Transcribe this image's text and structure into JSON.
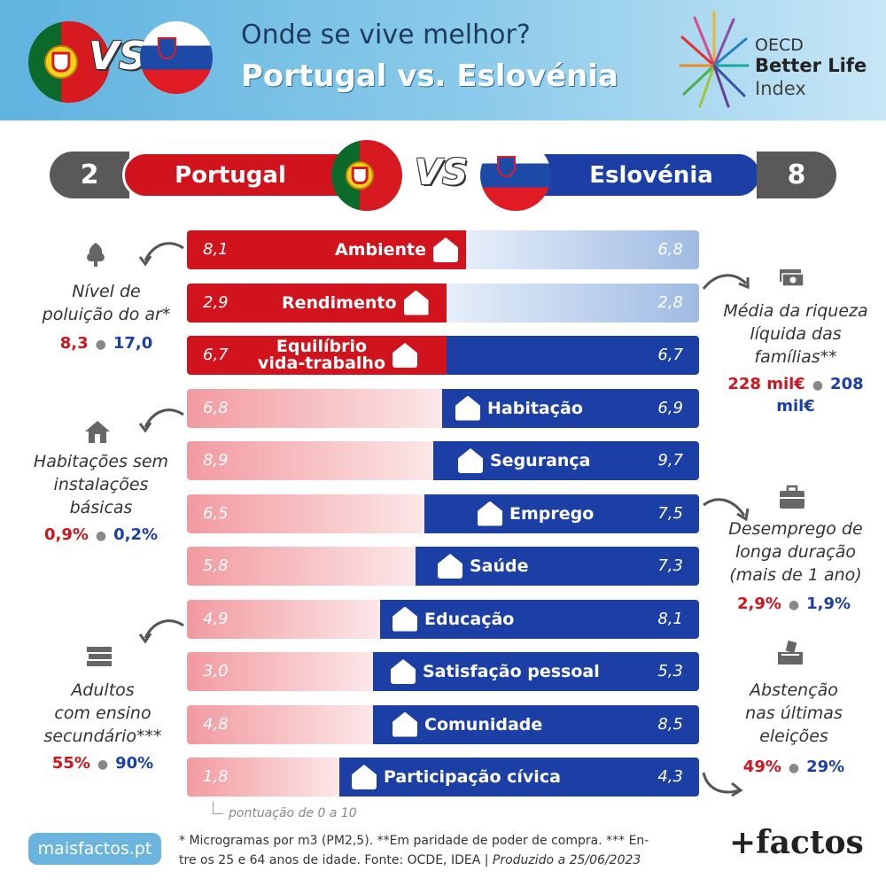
{
  "header": {
    "question": "Onde se vive melhor?",
    "title": "Portugal vs. Eslovénia",
    "vs": "VS",
    "oecd": {
      "line1": "OECD",
      "line2": "Better Life",
      "line3": "Index"
    }
  },
  "scoreboard": {
    "left_score": "2",
    "left_name": "Portugal",
    "vs": "VS",
    "right_name": "Eslovénia",
    "right_score": "8"
  },
  "colors": {
    "portugal_red": "#d0131c",
    "portugal_light": "#f29aa0",
    "slovenia_blue": "#1c3fa5",
    "slovenia_light": "#9fbbe3",
    "dark_gray": "#595959"
  },
  "rows": [
    {
      "label": "Ambiente",
      "icon": "tree-icon",
      "pt": "8,1",
      "si": "6,8",
      "winner": "pt",
      "pt_score": 8.1,
      "si_score": 6.8
    },
    {
      "label": "Rendimento",
      "icon": "money-icon",
      "pt": "2,9",
      "si": "2,8",
      "winner": "pt",
      "pt_score": 2.9,
      "si_score": 2.8
    },
    {
      "label_line1": "Equilíbrio",
      "label_line2": "vida-trabalho",
      "icon": "work-life-icon",
      "pt": "6,7",
      "si": "6,7",
      "winner": "tie",
      "pt_score": 6.7,
      "si_score": 6.7
    },
    {
      "label": "Habitação",
      "icon": "house-icon",
      "pt": "6,8",
      "si": "6,9",
      "winner": "si",
      "pt_score": 6.8,
      "si_score": 6.9
    },
    {
      "label": "Segurança",
      "icon": "police-icon",
      "pt": "8,9",
      "si": "9,7",
      "winner": "si",
      "pt_score": 8.9,
      "si_score": 9.7
    },
    {
      "label": "Emprego",
      "icon": "briefcase-icon",
      "pt": "6,5",
      "si": "7,5",
      "winner": "si",
      "pt_score": 6.5,
      "si_score": 7.5
    },
    {
      "label": "Saúde",
      "icon": "doctor-icon",
      "pt": "5,8",
      "si": "7,3",
      "winner": "si",
      "pt_score": 5.8,
      "si_score": 7.3
    },
    {
      "label": "Educação",
      "icon": "books-icon",
      "pt": "4,9",
      "si": "8,1",
      "winner": "si",
      "pt_score": 4.9,
      "si_score": 8.1
    },
    {
      "label": "Satisfação pessoal",
      "icon": "person-happy-icon",
      "pt": "3,0",
      "si": "5,3",
      "winner": "si",
      "pt_score": 3.0,
      "si_score": 5.3
    },
    {
      "label": "Comunidade",
      "icon": "people-icon",
      "pt": "4,8",
      "si": "8,5",
      "winner": "si",
      "pt_score": 4.8,
      "si_score": 8.5
    },
    {
      "label": "Participação cívica",
      "icon": "ballot-icon",
      "pt": "1,8",
      "si": "4,3",
      "winner": "si",
      "pt_score": 1.8,
      "si_score": 4.3
    }
  ],
  "scale_note": "pontuação de 0 a 10",
  "side_notes": {
    "air": {
      "l1": "Nível de",
      "l2": "poluição do ar*",
      "pt": "8,3",
      "si": "17,0"
    },
    "housing": {
      "l1": "Habitações sem",
      "l2": "instalações",
      "l3": "básicas",
      "pt": "0,9%",
      "si": "0,2%"
    },
    "education": {
      "l1": "Adultos",
      "l2": "com ensino",
      "l3": "secundário***",
      "pt": "55%",
      "si": "90%"
    },
    "wealth": {
      "l1": "Média da riqueza",
      "l2": "líquida das",
      "l3": "famílias**",
      "pt": "228 mil€",
      "si": "208 mil€"
    },
    "unemployment": {
      "l1": "Desemprego de",
      "l2": "longa duração",
      "l3": "(mais de 1 ano)",
      "pt": "2,9%",
      "si": "1,9%"
    },
    "abstention": {
      "l1": "Abstenção",
      "l2": "nas últimas",
      "l3": "eleições",
      "pt": "49%",
      "si": "29%"
    }
  },
  "footer": {
    "site": "maisfactos.pt",
    "note_line1": "* Microgramas por m3 (PM2,5). **Em paridade de poder de compra. *** En-",
    "note_line2a": "tre os 25 e 64 anos de idade. Fonte: OCDE, IDEA | ",
    "note_line2b": "Produzido a 25/06/2023",
    "brand": "+factos"
  }
}
